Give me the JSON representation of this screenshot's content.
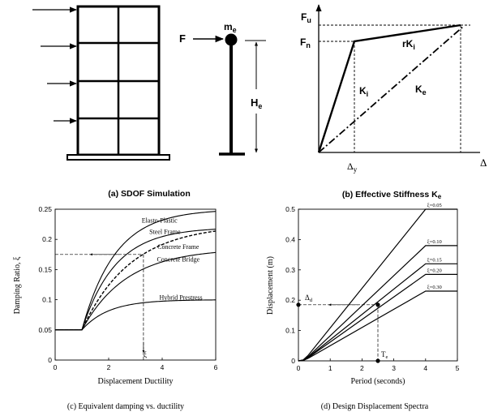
{
  "panels": {
    "a": {
      "caption": "(a) SDOF Simulation",
      "force_label": "F",
      "mass_label": "m",
      "mass_sub": "e",
      "height_label": "H",
      "height_sub": "e"
    },
    "b": {
      "caption": "(b) Effective Stiffness K",
      "caption_sub": "e",
      "fu_label": "F",
      "fu_sub": "u",
      "fn_label": "F",
      "fn_sub": "n",
      "rki_label": "rK",
      "rki_sub": "i",
      "ki_label": "K",
      "ki_sub": "i",
      "ke_label": "K",
      "ke_sub": "e",
      "dy_label": "Δ",
      "dy_sub": "y",
      "delta_label": "Δ"
    },
    "c": {
      "caption": "(c) Equivalent damping vs. ductility",
      "xi_marker": "ξ"
    },
    "d": {
      "caption": "(d) Design Displacement  Spectra",
      "dd_label": "Δ",
      "dd_sub": "d",
      "te_label": "T",
      "te_sub": "e"
    }
  },
  "chart_data": [
    {
      "type": "line",
      "xlabel": "Displacement Ductility",
      "ylabel": "Damping Ratio, ξ",
      "xlim": [
        0,
        6
      ],
      "ylim": [
        0,
        0.25
      ],
      "xticks": [
        "0",
        "2",
        "4",
        "6"
      ],
      "yticks": [
        "0",
        "0.05",
        "0.1",
        "0.15",
        "0.2",
        "0.25"
      ],
      "series": [
        {
          "name": "Elasto-Plastic",
          "asymptote": 0.25,
          "rate": 0.8,
          "dashed": false
        },
        {
          "name": "Steel Frame",
          "asymptote": 0.22,
          "rate": 0.8,
          "dashed": false
        },
        {
          "name": "Concrete Frame",
          "asymptote": 0.225,
          "rate": 0.55,
          "dashed": true
        },
        {
          "name": "Concrete Bridge",
          "asymptote": 0.185,
          "rate": 0.6,
          "dashed": false
        },
        {
          "name": "Hybrid Prestress",
          "asymptote": 0.1,
          "rate": 1.0,
          "dashed": false
        }
      ],
      "base_value": 0.05,
      "base_until": 1,
      "reference": {
        "x": 3.3,
        "y": 0.175
      }
    },
    {
      "type": "line",
      "xlabel": "Period (seconds)",
      "ylabel": "Displacement (m)",
      "xlim": [
        0,
        5
      ],
      "ylim": [
        0,
        0.5
      ],
      "xticks": [
        "0",
        "1",
        "2",
        "3",
        "4",
        "5"
      ],
      "yticks": [
        "0",
        "0.1",
        "0.2",
        "0.3",
        "0.4",
        "0.5"
      ],
      "series": [
        {
          "name": "ξ=0.05",
          "plateau": 0.5
        },
        {
          "name": "ξ=0.10",
          "plateau": 0.38
        },
        {
          "name": "ξ=0.15",
          "plateau": 0.32
        },
        {
          "name": "ξ=0.20",
          "plateau": 0.285
        },
        {
          "name": "ξ=0.30",
          "plateau": 0.23
        }
      ],
      "corner_period": 4,
      "design_point": {
        "x": 2.5,
        "y": 0.185
      }
    }
  ]
}
